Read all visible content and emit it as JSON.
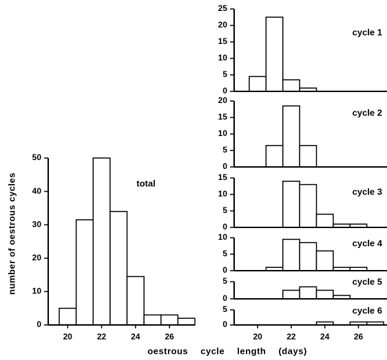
{
  "chart_data": [
    {
      "type": "histogram",
      "title": "total",
      "ylabel": "number of oestrous cycles",
      "xlabel": "oestrous cycle length (days)",
      "bins": [
        19.5,
        20.5,
        21.5,
        22.5,
        23.5,
        24.5,
        25.5,
        26.5,
        27.5
      ],
      "values": [
        5,
        31.5,
        50,
        34,
        14.5,
        3,
        3,
        2
      ],
      "xlim": [
        18.85,
        27.5
      ],
      "ylim": [
        0,
        50
      ],
      "yticks": [
        0,
        10,
        20,
        30,
        40,
        50
      ],
      "xticks": [
        20,
        22,
        24,
        26
      ]
    },
    {
      "type": "histogram",
      "title": "cycle 1",
      "bins": [
        19.5,
        20.5,
        21.5,
        22.5,
        23.5
      ],
      "values": [
        4.5,
        22.5,
        3.5,
        1
      ],
      "xlim": [
        18.6,
        27.7
      ],
      "ylim": [
        0,
        25
      ],
      "yticks": [
        0,
        5,
        10,
        15,
        20,
        25
      ]
    },
    {
      "type": "histogram",
      "title": "cycle 2",
      "bins": [
        20.5,
        21.5,
        22.5,
        23.5
      ],
      "values": [
        6.5,
        18.5,
        6.5
      ],
      "xlim": [
        18.6,
        27.7
      ],
      "ylim": [
        0,
        20
      ],
      "yticks": [
        0,
        5,
        10,
        15,
        20
      ]
    },
    {
      "type": "histogram",
      "title": "cycle 3",
      "bins": [
        21.5,
        22.5,
        23.5,
        24.5,
        25.5,
        26.5
      ],
      "values": [
        14,
        13,
        4,
        1,
        1
      ],
      "xlim": [
        18.6,
        27.7
      ],
      "ylim": [
        0,
        15
      ],
      "yticks": [
        0,
        5,
        10,
        15
      ]
    },
    {
      "type": "histogram",
      "title": "cycle 4",
      "bins": [
        20.5,
        21.5,
        22.5,
        23.5,
        24.5,
        25.5,
        26.5
      ],
      "values": [
        1,
        9.5,
        8.5,
        6,
        1,
        1
      ],
      "xlim": [
        18.6,
        27.7
      ],
      "ylim": [
        0,
        10
      ],
      "yticks": [
        0,
        5,
        10
      ]
    },
    {
      "type": "histogram",
      "title": "cycle 5",
      "bins": [
        21.5,
        22.5,
        23.5,
        24.5,
        25.5
      ],
      "values": [
        2.5,
        3.5,
        2.5,
        1
      ],
      "xlim": [
        18.6,
        27.7
      ],
      "ylim": [
        0,
        5
      ],
      "yticks": [
        0,
        5
      ]
    },
    {
      "type": "histogram",
      "title": "cycle 6",
      "bins": [
        23.5,
        24.5,
        25.5,
        26.5,
        27.5
      ],
      "values": [
        1,
        0,
        1,
        1
      ],
      "xlim": [
        18.6,
        27.7
      ],
      "ylim": [
        0,
        5
      ],
      "yticks": [
        0,
        5
      ],
      "xticks": [
        20,
        22,
        24,
        26
      ]
    }
  ]
}
